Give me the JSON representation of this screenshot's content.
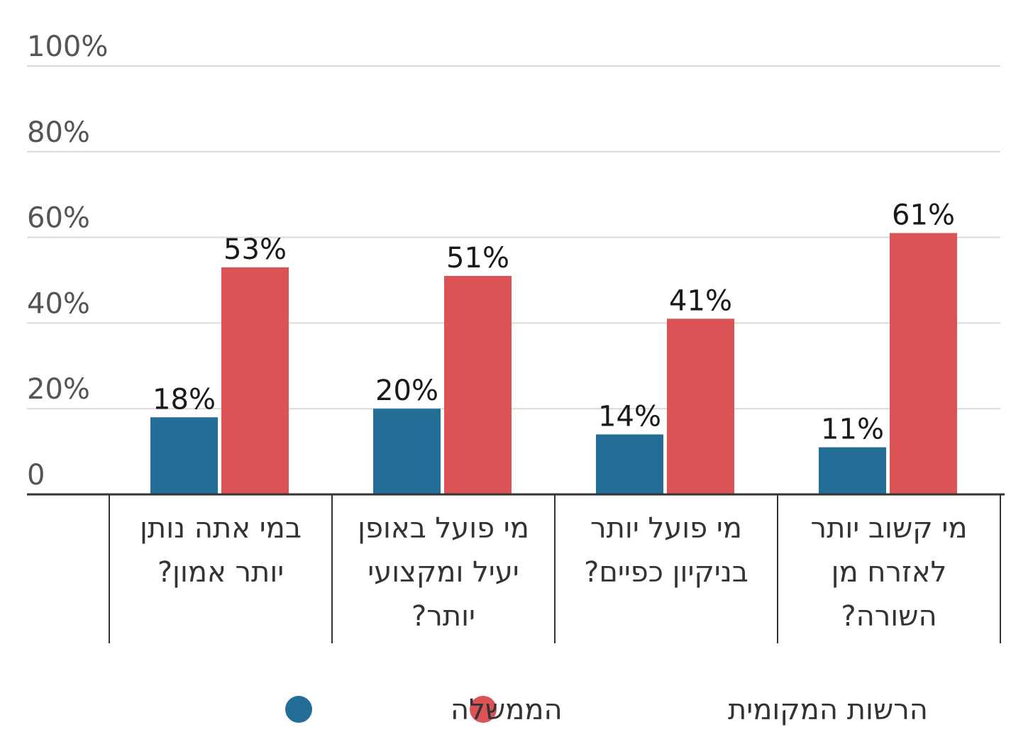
{
  "chart_data": {
    "type": "bar",
    "categories": [
      [
        "במי אתה נותן",
        "יותר אמון?"
      ],
      [
        "מי פועל באופן",
        "יעיל ומקצועי",
        "יותר?"
      ],
      [
        "מי פועל יותר",
        "בניקיון כפיים?"
      ],
      [
        "מי קשוב יותר",
        "לאזרח מן",
        "השורה?"
      ]
    ],
    "series": [
      {
        "name": "הממשלה",
        "color": "#236e96",
        "values": [
          18,
          20,
          14,
          11
        ]
      },
      {
        "name": "הרשות המקומית",
        "color": "#dc5356",
        "values": [
          53,
          51,
          41,
          61
        ]
      }
    ],
    "value_labels": [
      [
        "18%",
        "20%",
        "14%",
        "11%"
      ],
      [
        "53%",
        "51%",
        "41%",
        "61%"
      ]
    ],
    "y_ticks": [
      {
        "value": 0,
        "label": "0"
      },
      {
        "value": 20,
        "label": "20%"
      },
      {
        "value": 40,
        "label": "40%"
      },
      {
        "value": 60,
        "label": "60%"
      },
      {
        "value": 80,
        "label": "80%"
      },
      {
        "value": 100,
        "label": "100%"
      }
    ],
    "ylim": [
      0,
      100
    ],
    "grid": true,
    "legend_position": "bottom",
    "title": "",
    "xlabel": "",
    "ylabel": ""
  }
}
